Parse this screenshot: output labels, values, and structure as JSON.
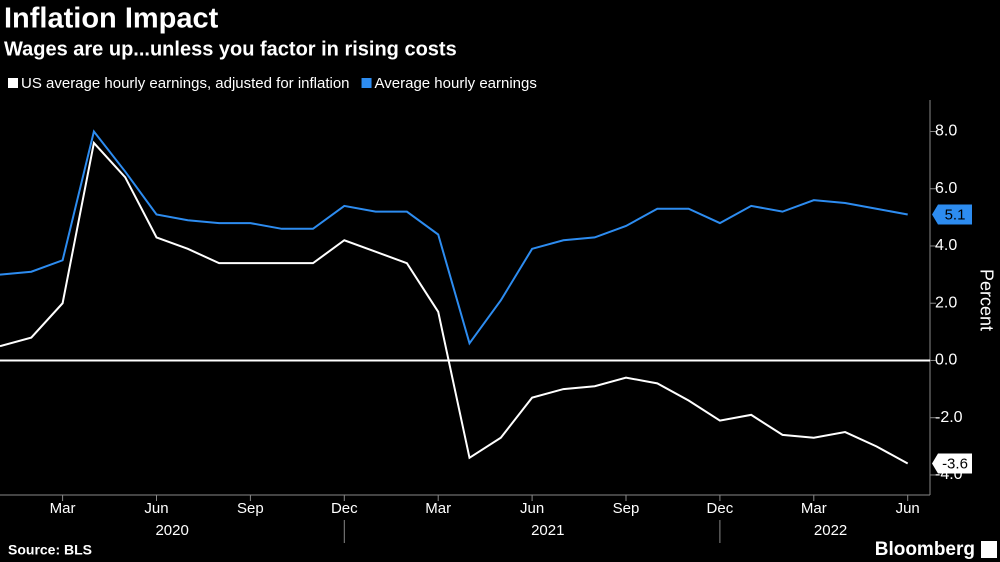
{
  "chart_data": {
    "type": "line",
    "title": "Inflation Impact",
    "subtitle": "Wages are up...unless you factor in rising costs",
    "y_label": "Percent",
    "source": "Source: BLS",
    "brand": "Bloomberg",
    "categories": [
      "2020-01",
      "2020-02",
      "2020-03",
      "2020-04",
      "2020-05",
      "2020-06",
      "2020-07",
      "2020-08",
      "2020-09",
      "2020-10",
      "2020-11",
      "2020-12",
      "2021-01",
      "2021-02",
      "2021-03",
      "2021-04",
      "2021-05",
      "2021-06",
      "2021-07",
      "2021-08",
      "2021-09",
      "2021-10",
      "2021-11",
      "2021-12",
      "2022-01",
      "2022-02",
      "2022-03",
      "2022-04",
      "2022-05",
      "2022-06"
    ],
    "xticks": [
      {
        "value": "2020-03",
        "label": "Mar"
      },
      {
        "value": "2020-06",
        "label": "Jun"
      },
      {
        "value": "2020-09",
        "label": "Sep"
      },
      {
        "value": "2020-12",
        "label": "Dec"
      },
      {
        "value": "2021-03",
        "label": "Mar"
      },
      {
        "value": "2021-06",
        "label": "Jun"
      },
      {
        "value": "2021-09",
        "label": "Sep"
      },
      {
        "value": "2021-12",
        "label": "Dec"
      },
      {
        "value": "2022-03",
        "label": "Mar"
      },
      {
        "value": "2022-06",
        "label": "Jun"
      }
    ],
    "years": [
      "2020",
      "2021",
      "2022"
    ],
    "ylim": [
      -4.7,
      9.1
    ],
    "yticks": [
      {
        "value": -4,
        "label": "-4.0"
      },
      {
        "value": -2,
        "label": "-2.0"
      },
      {
        "value": 0,
        "label": "0.0"
      },
      {
        "value": 2,
        "label": "2.0"
      },
      {
        "value": 4,
        "label": "4.0"
      },
      {
        "value": 6,
        "label": "6.0"
      },
      {
        "value": 8,
        "label": "8.0"
      }
    ],
    "zero_line": true,
    "series": [
      {
        "name": "US average hourly earnings, adjusted for inflation",
        "color": "#ffffff",
        "values": [
          0.5,
          0.8,
          2.0,
          7.6,
          6.4,
          4.3,
          3.9,
          3.4,
          3.4,
          3.4,
          3.4,
          4.2,
          3.8,
          3.4,
          1.7,
          -3.4,
          -2.7,
          -1.3,
          -1.0,
          -0.9,
          -0.6,
          -0.8,
          -1.4,
          -2.1,
          -1.9,
          -2.6,
          -2.7,
          -2.5,
          -3.0,
          -3.6
        ]
      },
      {
        "name": "Average hourly earnings",
        "color": "#2d8cf0",
        "values": [
          3.0,
          3.1,
          3.5,
          8.0,
          6.6,
          5.1,
          4.9,
          4.8,
          4.8,
          4.6,
          4.6,
          5.4,
          5.2,
          5.2,
          4.4,
          0.6,
          2.1,
          3.9,
          4.2,
          4.3,
          4.7,
          5.3,
          5.3,
          4.8,
          5.4,
          5.2,
          5.6,
          5.5,
          5.3,
          5.1
        ]
      }
    ]
  }
}
